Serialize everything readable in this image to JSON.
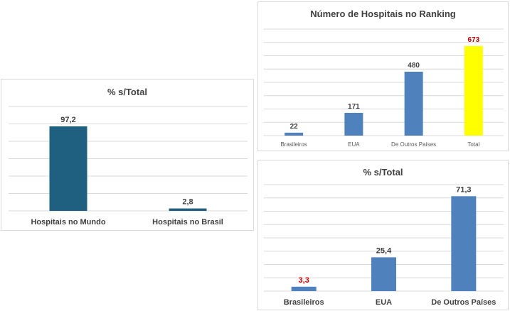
{
  "colors": {
    "dark_teal": "#1f5f7f",
    "steel_blue": "#4f81bd",
    "highlight_yellow": "#ffff00",
    "highlight_red": "#c00000",
    "label_dark": "#404040",
    "gridline": "#d9d9d9"
  },
  "chart_data": [
    {
      "id": "left",
      "type": "bar",
      "title": "% s/Total",
      "categories": [
        "Hospitais no Mundo",
        "Hospitais no Brasil"
      ],
      "values": [
        97.2,
        2.8
      ],
      "value_labels": [
        "97,2",
        "2,8"
      ],
      "ylim": [
        0,
        120
      ],
      "grid": true,
      "bar_colors": [
        "#1f5f7f",
        "#1f5f7f"
      ],
      "label_colors": [
        "#404040",
        "#404040"
      ]
    },
    {
      "id": "tr",
      "type": "bar",
      "title": "Número de Hospitais no Ranking",
      "categories": [
        "Brasileiros",
        "EUA",
        "De Outros Países",
        "Total"
      ],
      "values": [
        22,
        171,
        480,
        673
      ],
      "value_labels": [
        "22",
        "171",
        "480",
        "673"
      ],
      "ylim": [
        0,
        800
      ],
      "grid": true,
      "bar_colors": [
        "#4f81bd",
        "#4f81bd",
        "#4f81bd",
        "#ffff00"
      ],
      "label_colors": [
        "#404040",
        "#404040",
        "#404040",
        "#c00000"
      ]
    },
    {
      "id": "br",
      "type": "bar",
      "title": "% s/Total",
      "categories": [
        "Brasileiros",
        "EUA",
        "De Outros Países"
      ],
      "values": [
        3.3,
        25.4,
        71.3
      ],
      "value_labels": [
        "3,3",
        "25,4",
        "71,3"
      ],
      "ylim": [
        0,
        80
      ],
      "grid": true,
      "bar_colors": [
        "#4f81bd",
        "#4f81bd",
        "#4f81bd"
      ],
      "label_colors": [
        "#c00000",
        "#404040",
        "#404040"
      ]
    }
  ]
}
